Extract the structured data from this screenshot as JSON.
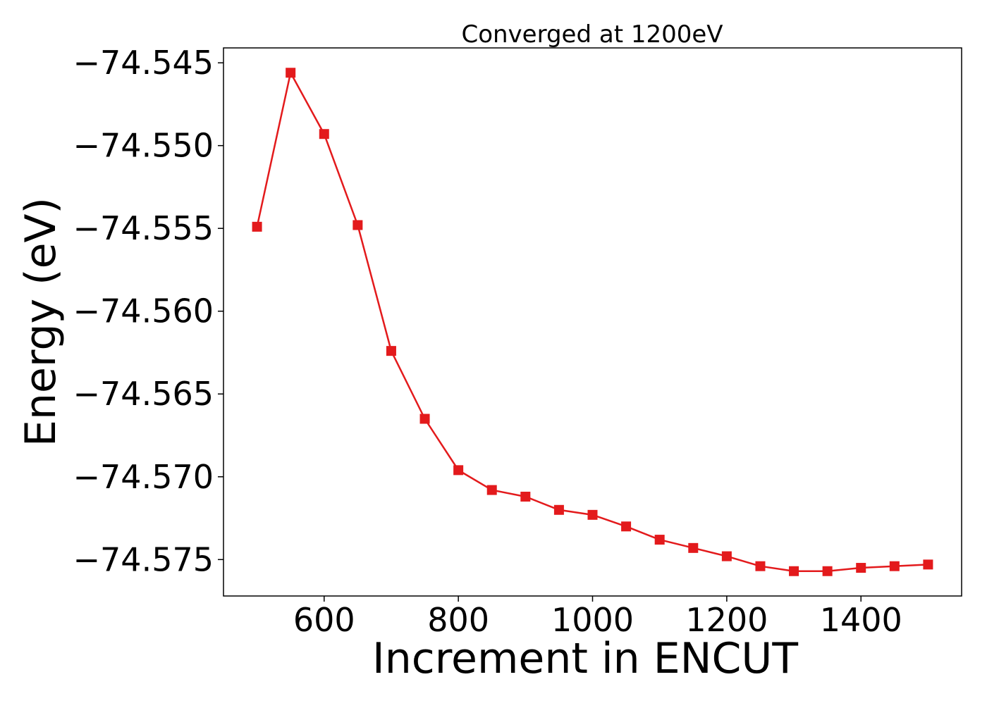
{
  "chart_data": {
    "type": "line",
    "title": "Converged at 1200eV",
    "xlabel": "Increment in ENCUT",
    "ylabel": "Energy (eV)",
    "xlim": [
      450,
      1550
    ],
    "ylim": [
      -74.5772,
      -74.5441
    ],
    "xticks": [
      600,
      800,
      1000,
      1200,
      1400
    ],
    "xtick_labels": [
      "600",
      "800",
      "1000",
      "1200",
      "1400"
    ],
    "yticks": [
      -74.545,
      -74.55,
      -74.555,
      -74.56,
      -74.565,
      -74.57,
      -74.575
    ],
    "ytick_labels": [
      "−74.545",
      "−74.550",
      "−74.555",
      "−74.560",
      "−74.565",
      "−74.570",
      "−74.575"
    ],
    "grid": false,
    "series": [
      {
        "color": "#e31a1c",
        "marker": "square",
        "x": [
          500,
          550,
          600,
          650,
          700,
          750,
          800,
          850,
          900,
          950,
          1000,
          1050,
          1100,
          1150,
          1200,
          1250,
          1300,
          1350,
          1400,
          1450,
          1500
        ],
        "y": [
          -74.5549,
          -74.5456,
          -74.5493,
          -74.5548,
          -74.5624,
          -74.5665,
          -74.5696,
          -74.5708,
          -74.5712,
          -74.572,
          -74.5723,
          -74.573,
          -74.5738,
          -74.5743,
          -74.5748,
          -74.5754,
          -74.5757,
          -74.5757,
          -74.5755,
          -74.5754,
          -74.5753
        ]
      }
    ]
  }
}
